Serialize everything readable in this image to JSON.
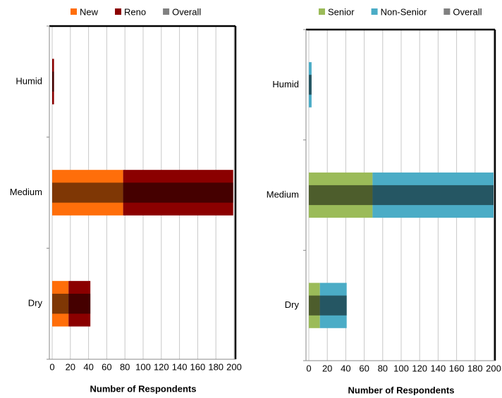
{
  "chart_data": [
    {
      "type": "bar",
      "orientation": "horizontal",
      "stacked": true,
      "categories": [
        "Humid",
        "Medium",
        "Dry"
      ],
      "series": [
        {
          "name": "New",
          "color": "#ff6e0a",
          "values": [
            0,
            78,
            18
          ]
        },
        {
          "name": "Reno",
          "color": "#8b0000",
          "values": [
            2,
            121,
            24
          ]
        },
        {
          "name": "Overall",
          "color": "#808080",
          "style": "overlay",
          "values": [
            2,
            199,
            42
          ]
        }
      ],
      "x_label": "Number of Respondents",
      "xlim": [
        0,
        200
      ],
      "xticks": [
        0,
        20,
        40,
        60,
        80,
        100,
        120,
        140,
        160,
        180,
        200
      ],
      "grid": true,
      "legend": "top"
    },
    {
      "type": "bar",
      "orientation": "horizontal",
      "stacked": true,
      "categories": [
        "Humid",
        "Medium",
        "Dry"
      ],
      "series": [
        {
          "name": "Senior",
          "color": "#9bbb59",
          "values": [
            0,
            69,
            12
          ]
        },
        {
          "name": "Non-Senior",
          "color": "#4bacc6",
          "values": [
            3,
            131,
            29
          ]
        },
        {
          "name": "Overall",
          "color": "#808080",
          "style": "overlay",
          "values": [
            3,
            200,
            41
          ]
        }
      ],
      "x_label": "Number of Respondents",
      "xlim": [
        0,
        200
      ],
      "xticks": [
        0,
        20,
        40,
        60,
        80,
        100,
        120,
        140,
        160,
        180,
        200
      ],
      "grid": true,
      "legend": "top"
    }
  ]
}
